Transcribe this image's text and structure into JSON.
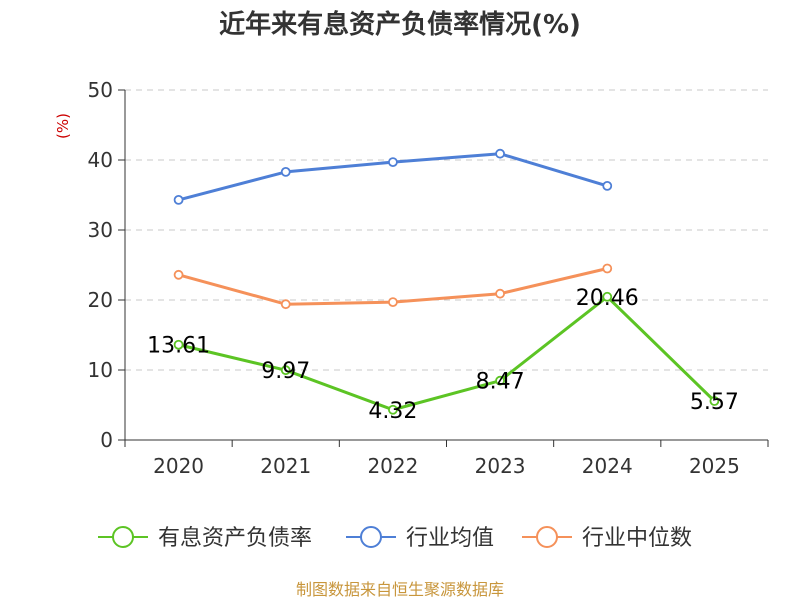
{
  "chart_data": {
    "type": "line",
    "title": "近年来有息资产负债率情况(%)",
    "y_unit_label": "(%)",
    "xlabel": "",
    "ylabel": "",
    "categories": [
      "2020",
      "2021",
      "2022",
      "2023",
      "2024",
      "2025"
    ],
    "ylim": [
      0,
      50
    ],
    "yticks": [
      "0",
      "10",
      "20",
      "30",
      "40",
      "50"
    ],
    "grid": "horizontal-dashed",
    "legend_position": "bottom",
    "series": [
      {
        "name": "有息资产负债率",
        "color": "#5cc424",
        "values": [
          13.61,
          9.97,
          4.32,
          8.47,
          20.46,
          5.57
        ],
        "labels": [
          "13.61",
          "9.97",
          "4.32",
          "8.47",
          "20.46",
          "5.57"
        ]
      },
      {
        "name": "行业均值",
        "color": "#4e7fd6",
        "values": [
          34.3,
          38.3,
          39.7,
          40.9,
          36.3,
          null
        ]
      },
      {
        "name": "行业中位数",
        "color": "#f5915a",
        "values": [
          23.6,
          19.4,
          19.7,
          20.9,
          24.5,
          null
        ]
      }
    ],
    "source": "制图数据来自恒生聚源数据库"
  }
}
